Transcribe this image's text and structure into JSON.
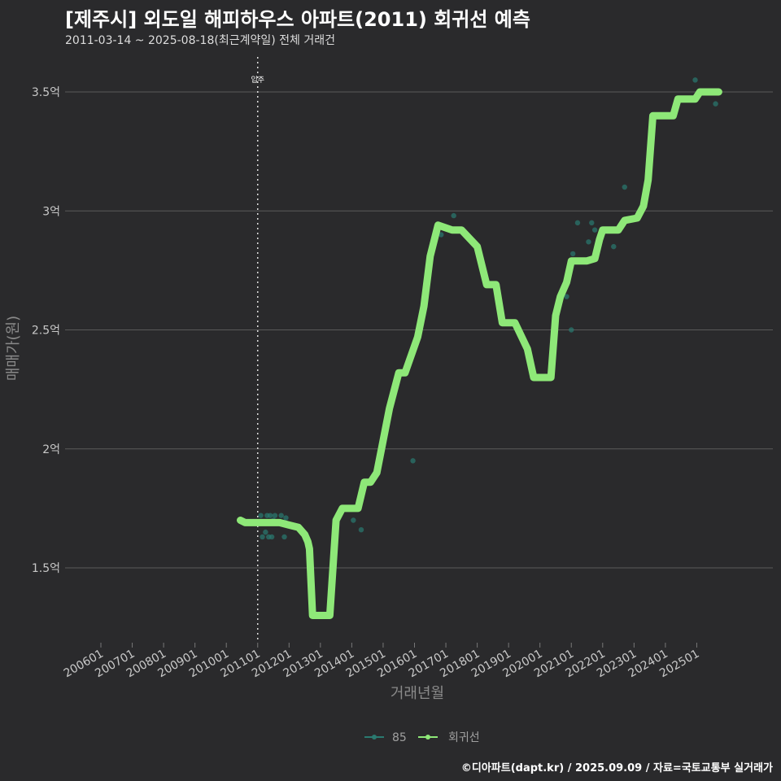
{
  "header": {
    "title": "[제주시] 외도일 해피하우스 아파트(2011) 회귀선 예측",
    "subtitle": "2011-03-14 ~ 2025-08-18(최근계약일) 전체 거래건"
  },
  "footer": {
    "credit": "©디아파트(dapt.kr) / 2025.09.09 / 자료=국토교통부 실거래가"
  },
  "colors": {
    "background": "#2a2a2c",
    "grid": "#5a5a5a",
    "regression": "#8ee878",
    "points": "#2a7a70"
  },
  "chart_data": {
    "type": "line",
    "title": "[제주시] 외도일 해피하우스 아파트(2011) 회귀선 예측",
    "xlabel": "거래년월",
    "ylabel": "매매가(원)",
    "ylim": [
      1.2,
      3.65
    ],
    "xlim": [
      2005.5,
      2026.0
    ],
    "y_ticks": [
      {
        "value": 1.5,
        "label": "1.5억"
      },
      {
        "value": 2.0,
        "label": "2억"
      },
      {
        "value": 2.5,
        "label": "2.5억"
      },
      {
        "value": 3.0,
        "label": "3억"
      },
      {
        "value": 3.5,
        "label": "3.5억"
      }
    ],
    "x_ticks": [
      {
        "value": 2006.0,
        "label": "200601"
      },
      {
        "value": 2007.0,
        "label": "200701"
      },
      {
        "value": 2008.0,
        "label": "200801"
      },
      {
        "value": 2009.0,
        "label": "200901"
      },
      {
        "value": 2010.0,
        "label": "201001"
      },
      {
        "value": 2011.0,
        "label": "201101"
      },
      {
        "value": 2012.0,
        "label": "201201"
      },
      {
        "value": 2013.0,
        "label": "201301"
      },
      {
        "value": 2014.0,
        "label": "201401"
      },
      {
        "value": 2015.0,
        "label": "201501"
      },
      {
        "value": 2016.0,
        "label": "201601"
      },
      {
        "value": 2017.0,
        "label": "201701"
      },
      {
        "value": 2018.0,
        "label": "201801"
      },
      {
        "value": 2019.0,
        "label": "201901"
      },
      {
        "value": 2020.0,
        "label": "202001"
      },
      {
        "value": 2021.0,
        "label": "202101"
      },
      {
        "value": 2022.0,
        "label": "202201"
      },
      {
        "value": 2023.0,
        "label": "202301"
      },
      {
        "value": 2024.0,
        "label": "202401"
      },
      {
        "value": 2025.0,
        "label": "202501"
      }
    ],
    "annotation": {
      "x": 2011.0,
      "label": "입주"
    },
    "legend": {
      "position": "bottom",
      "items": [
        {
          "name": "85",
          "color": "#2a7a70"
        },
        {
          "name": "회귀선",
          "color": "#8ee878"
        }
      ]
    },
    "series": [
      {
        "name": "85",
        "type": "scatter",
        "x": [
          2011.1,
          2011.15,
          2011.25,
          2011.3,
          2011.35,
          2011.4,
          2011.45,
          2011.5,
          2011.55,
          2011.75,
          2011.85,
          2011.9,
          2012.75,
          2014.05,
          2014.3,
          2015.95,
          2016.2,
          2016.85,
          2017.25,
          2020.05,
          2020.85,
          2021.0,
          2021.05,
          2021.2,
          2021.55,
          2021.65,
          2021.75,
          2022.35,
          2022.7,
          2024.95,
          2025.6
        ],
        "y": [
          1.72,
          1.63,
          1.65,
          1.72,
          1.63,
          1.72,
          1.63,
          1.7,
          1.72,
          1.72,
          1.63,
          1.71,
          1.3,
          1.7,
          1.66,
          1.95,
          2.55,
          2.9,
          2.98,
          2.3,
          2.64,
          2.5,
          2.82,
          2.95,
          2.87,
          2.95,
          2.92,
          2.85,
          3.1,
          3.55,
          3.45
        ]
      },
      {
        "name": "회귀선",
        "type": "line",
        "x": [
          2010.45,
          2010.6,
          2011.0,
          2011.7,
          2012.0,
          2012.3,
          2012.5,
          2012.6,
          2012.65,
          2012.75,
          2013.0,
          2013.3,
          2013.5,
          2013.7,
          2014.2,
          2014.4,
          2014.6,
          2014.8,
          2015.2,
          2015.5,
          2015.7,
          2016.1,
          2016.3,
          2016.5,
          2016.75,
          2017.2,
          2017.5,
          2018.0,
          2018.3,
          2018.45,
          2018.6,
          2018.8,
          2019.0,
          2019.2,
          2019.6,
          2019.8,
          2020.1,
          2020.35,
          2020.5,
          2020.65,
          2020.85,
          2021.0,
          2021.5,
          2021.75,
          2021.9,
          2022.0,
          2022.5,
          2022.7,
          2023.1,
          2023.3,
          2023.45,
          2023.6,
          2024.25,
          2024.4,
          2024.8,
          2024.95,
          2025.1,
          2025.7
        ],
        "y": [
          1.7,
          1.69,
          1.69,
          1.69,
          1.68,
          1.67,
          1.64,
          1.61,
          1.58,
          1.3,
          1.3,
          1.3,
          1.7,
          1.75,
          1.75,
          1.86,
          1.86,
          1.9,
          2.17,
          2.32,
          2.32,
          2.47,
          2.6,
          2.81,
          2.94,
          2.92,
          2.92,
          2.85,
          2.69,
          2.69,
          2.69,
          2.53,
          2.53,
          2.53,
          2.42,
          2.3,
          2.3,
          2.3,
          2.56,
          2.64,
          2.7,
          2.79,
          2.79,
          2.8,
          2.88,
          2.92,
          2.92,
          2.96,
          2.97,
          3.02,
          3.13,
          3.4,
          3.4,
          3.47,
          3.47,
          3.47,
          3.5,
          3.5
        ]
      }
    ]
  }
}
